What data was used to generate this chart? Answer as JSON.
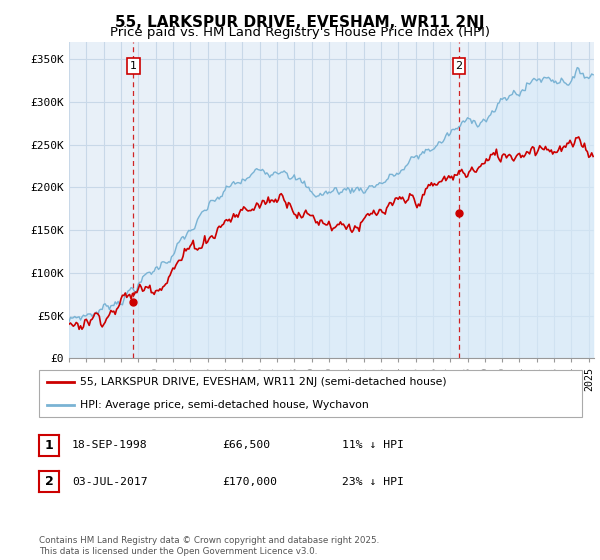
{
  "title": "55, LARKSPUR DRIVE, EVESHAM, WR11 2NJ",
  "subtitle": "Price paid vs. HM Land Registry's House Price Index (HPI)",
  "ylim": [
    0,
    370000
  ],
  "yticks": [
    0,
    50000,
    100000,
    150000,
    200000,
    250000,
    300000,
    350000
  ],
  "ytick_labels": [
    "£0",
    "£50K",
    "£100K",
    "£150K",
    "£200K",
    "£250K",
    "£300K",
    "£350K"
  ],
  "hpi_color": "#7ab3d4",
  "hpi_fill_color": "#d6eaf8",
  "price_color": "#cc0000",
  "vline_color": "#cc0000",
  "sale1_date": 1998.72,
  "sale1_price": 66500,
  "sale1_label": "1",
  "sale2_date": 2017.5,
  "sale2_price": 170000,
  "sale2_label": "2",
  "legend_entries": [
    "55, LARKSPUR DRIVE, EVESHAM, WR11 2NJ (semi-detached house)",
    "HPI: Average price, semi-detached house, Wychavon"
  ],
  "table_rows": [
    {
      "num": "1",
      "date": "18-SEP-1998",
      "price": "£66,500",
      "note": "11% ↓ HPI"
    },
    {
      "num": "2",
      "date": "03-JUL-2017",
      "price": "£170,000",
      "note": "23% ↓ HPI"
    }
  ],
  "footnote": "Contains HM Land Registry data © Crown copyright and database right 2025.\nThis data is licensed under the Open Government Licence v3.0.",
  "bg_color": "#ffffff",
  "chart_bg_color": "#e8f0f8",
  "grid_color": "#c8d8e8",
  "title_fontsize": 11,
  "subtitle_fontsize": 9.5,
  "tick_fontsize": 8,
  "xstart": 1995,
  "xend": 2025.3
}
